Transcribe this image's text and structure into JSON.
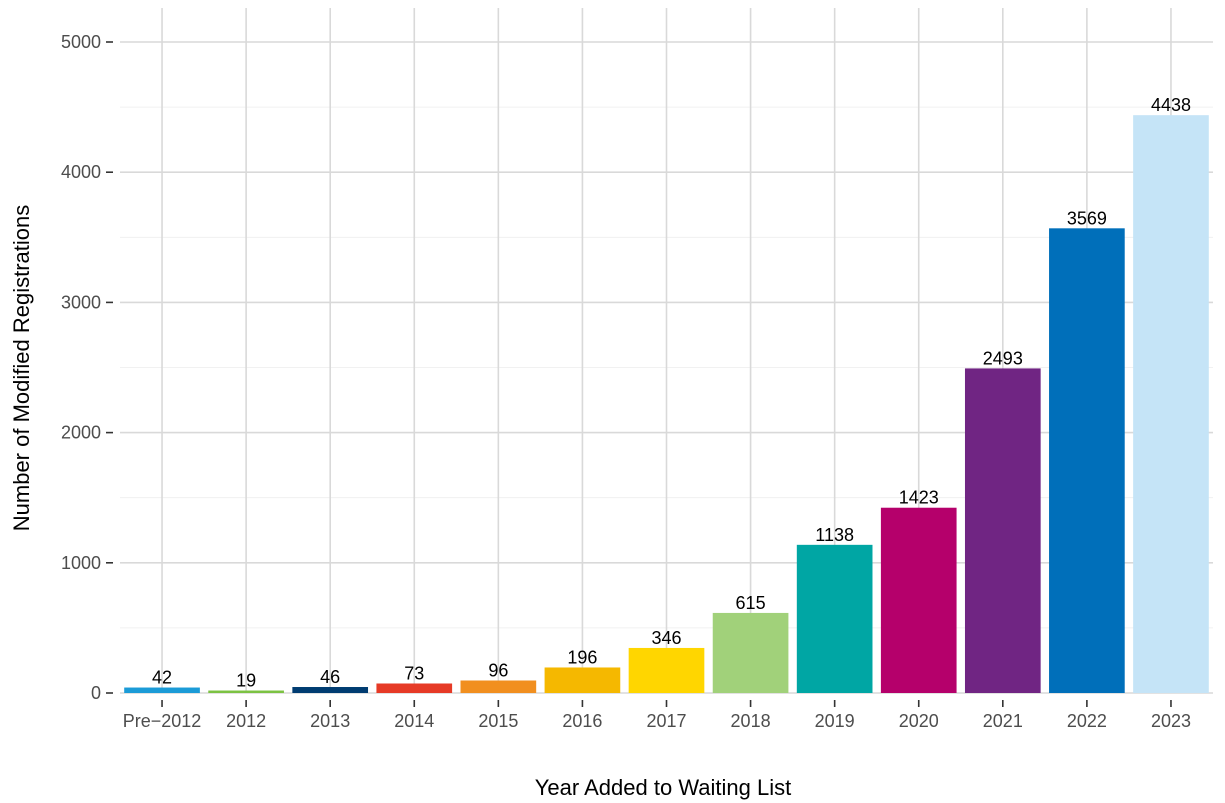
{
  "chart_data": {
    "type": "bar",
    "categories": [
      "Pre−2012",
      "2012",
      "2013",
      "2014",
      "2015",
      "2016",
      "2017",
      "2018",
      "2019",
      "2020",
      "2021",
      "2022",
      "2023"
    ],
    "values": [
      42,
      19,
      46,
      73,
      96,
      196,
      346,
      615,
      1138,
      1423,
      2493,
      3569,
      4438
    ],
    "colors": [
      "#1b9bd7",
      "#7cc242",
      "#003c71",
      "#e63a26",
      "#f18f1f",
      "#f5b800",
      "#ffd600",
      "#a1d17a",
      "#00a6a4",
      "#b5006b",
      "#702583",
      "#006fba",
      "#c5e4f7"
    ],
    "title": "",
    "xlabel": "Year Added to Waiting List",
    "ylabel": "Number of Modified Registrations",
    "ylim": [
      0,
      5000
    ],
    "yticks": [
      0,
      1000,
      2000,
      3000,
      4000,
      5000
    ],
    "grid": true,
    "legend": "none"
  }
}
